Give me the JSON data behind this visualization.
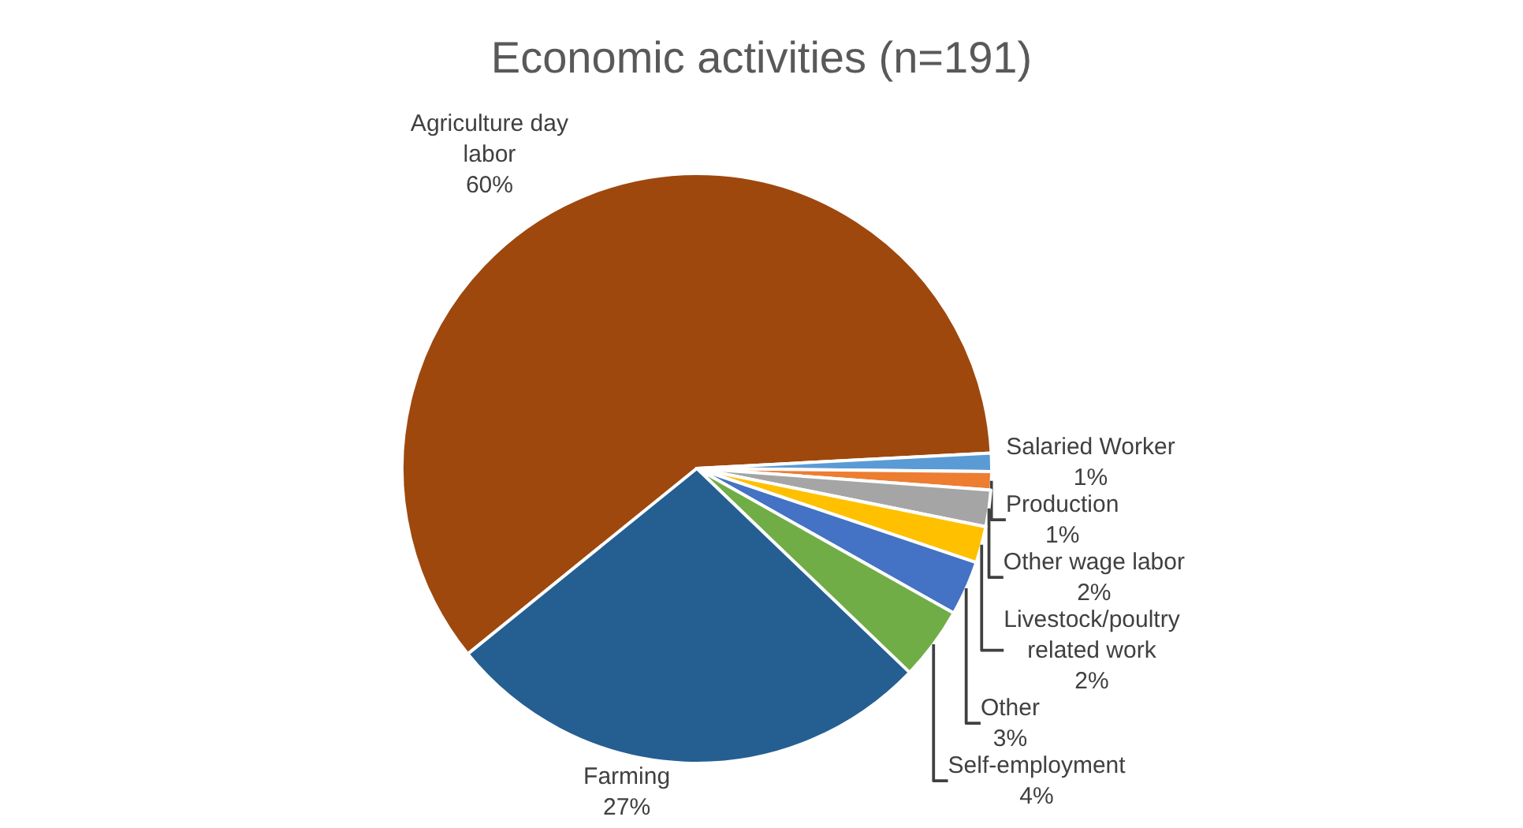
{
  "chart_data": {
    "type": "pie",
    "title": "Economic activities (n=191)",
    "categories": [
      "Agriculture day labor",
      "Salaried Worker",
      "Production",
      "Other wage labor",
      "Livestock/poultry related work",
      "Other",
      "Self-employment",
      "Farming"
    ],
    "values": [
      60,
      1,
      1,
      2,
      2,
      3,
      4,
      27
    ],
    "value_labels": [
      "60%",
      "1%",
      "1%",
      "2%",
      "2%",
      "3%",
      "4%",
      "27%"
    ],
    "colors": [
      "#9e480e",
      "#5b9bd5",
      "#ed7d31",
      "#a5a5a5",
      "#ffc000",
      "#4472c4",
      "#70ad47",
      "#255e91"
    ],
    "legend": false
  }
}
